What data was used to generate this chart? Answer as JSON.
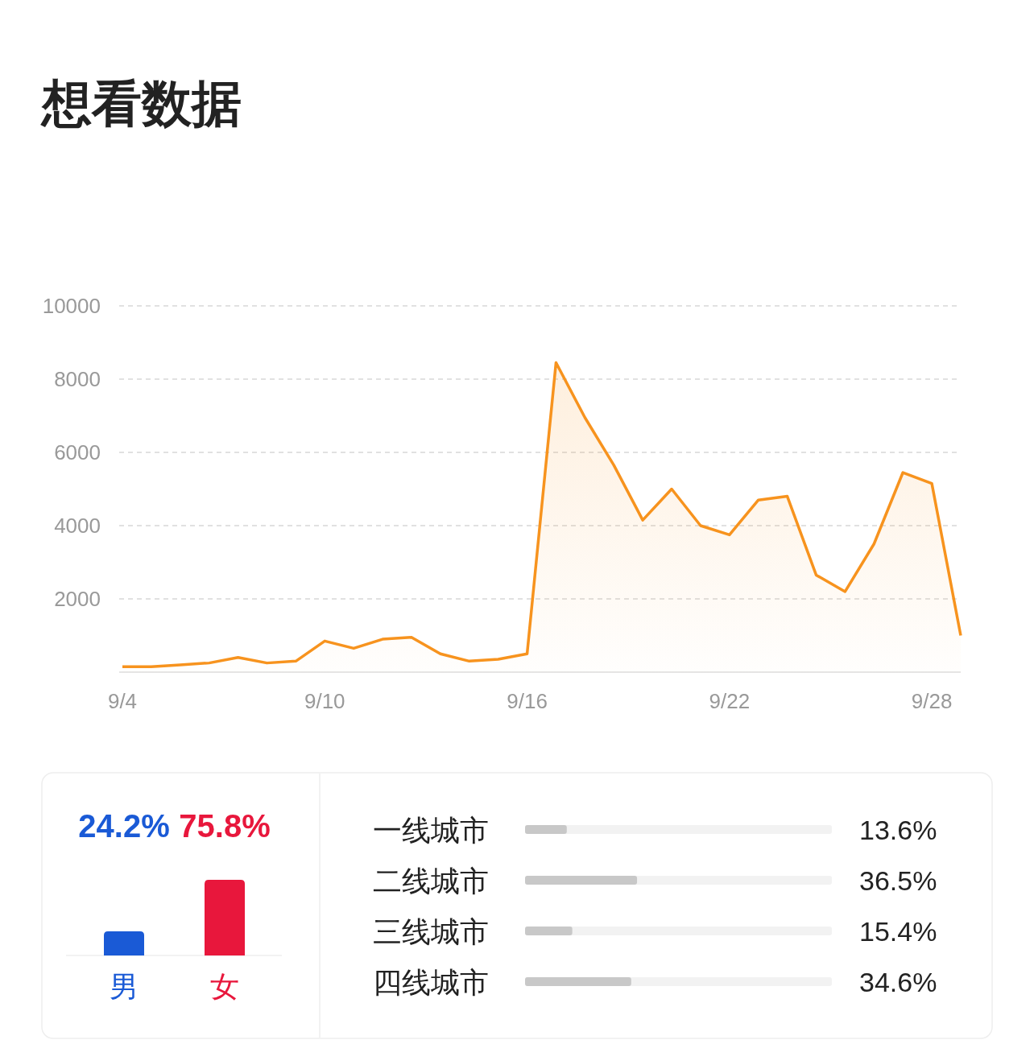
{
  "chart_data": [
    {
      "type": "area",
      "title": "想看数据",
      "categories": [
        "9/4",
        null,
        null,
        null,
        null,
        null,
        null,
        "9/10",
        null,
        null,
        null,
        null,
        null,
        null,
        "9/16",
        null,
        null,
        null,
        null,
        null,
        null,
        "9/22",
        null,
        null,
        null,
        null,
        null,
        null,
        "9/28",
        null
      ],
      "series": [
        {
          "color": "#f7931e",
          "values": [
            150,
            150,
            200,
            250,
            400,
            250,
            300,
            850,
            650,
            900,
            950,
            500,
            300,
            350,
            500,
            8450,
            6950,
            5650,
            4150,
            5000,
            4000,
            3750,
            4700,
            4800,
            2650,
            2200,
            3500,
            5450,
            5150,
            1000
          ]
        }
      ],
      "ylim": [
        0,
        10000
      ],
      "yticks": [
        2000,
        4000,
        6000,
        8000,
        10000
      ],
      "grid": "y"
    },
    {
      "type": "bar",
      "categories": [
        "男",
        "女"
      ],
      "values": [
        24.2,
        75.8
      ],
      "colors": [
        "#1a5ad6",
        "#e8173c"
      ],
      "value_labels": [
        "24.2%",
        "75.8%"
      ]
    },
    {
      "type": "bar",
      "orientation": "horizontal",
      "categories": [
        "一线城市",
        "二线城市",
        "三线城市",
        "四线城市"
      ],
      "values": [
        13.6,
        36.5,
        15.4,
        34.6
      ],
      "color": "#c8c8c8",
      "xlim": [
        0,
        100
      ],
      "value_labels": [
        "13.6%",
        "36.5%",
        "15.4%",
        "34.6%"
      ]
    }
  ]
}
